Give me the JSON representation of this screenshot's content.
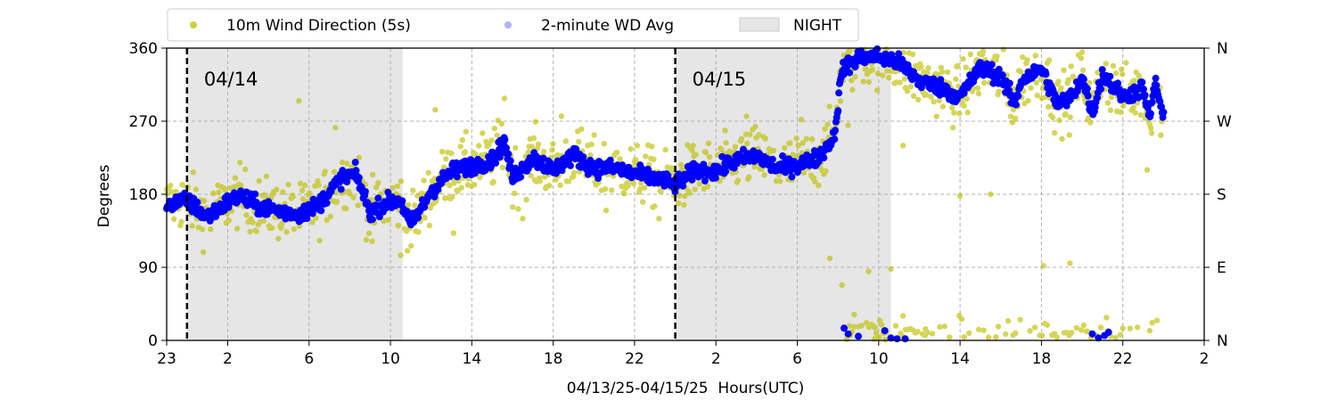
{
  "chart_data": {
    "type": "scatter",
    "xlabel": "04/13/25-04/15/25  Hours(UTC)",
    "ylabel": "Degrees",
    "ylim": [
      0,
      360
    ],
    "xlim": [
      -1,
      50
    ],
    "grid": true,
    "legend_placement": "top",
    "x_ticks": [
      -1,
      2,
      6,
      10,
      14,
      18,
      22,
      26,
      30,
      34,
      38,
      42,
      46,
      50
    ],
    "x_tick_labels": [
      "23",
      "2",
      "6",
      "10",
      "14",
      "18",
      "22",
      "2",
      "6",
      "10",
      "14",
      "18",
      "22",
      "2"
    ],
    "y_ticks": [
      0,
      90,
      180,
      270,
      360
    ],
    "y_tick_labels": [
      "0",
      "90",
      "180",
      "270",
      "360"
    ],
    "y2_tick_labels": [
      "N",
      "E",
      "S",
      "W",
      "N"
    ],
    "day_markers": [
      {
        "x": 0,
        "label": "04/14"
      },
      {
        "x": 24,
        "label": "04/15"
      }
    ],
    "night_periods": [
      [
        0,
        10.6
      ],
      [
        24,
        34.6
      ]
    ],
    "series": [
      {
        "name": "10m Wind Direction (5s)",
        "color": "#bfbf00",
        "spread": 18,
        "outliers": [
          [
            5.5,
            295
          ],
          [
            7.3,
            262
          ],
          [
            9.1,
            122
          ],
          [
            10.5,
            105
          ],
          [
            12.2,
            284
          ],
          [
            13.1,
            132
          ],
          [
            15.6,
            298
          ],
          [
            16.5,
            150
          ],
          [
            18.4,
            276
          ],
          [
            20.6,
            160
          ],
          [
            23.2,
            150
          ],
          [
            27.5,
            276
          ],
          [
            30.2,
            272
          ],
          [
            32.5,
            265
          ],
          [
            34.6,
            88
          ],
          [
            35.2,
            240
          ],
          [
            39.5,
            180
          ],
          [
            38.0,
            178
          ],
          [
            42.1,
            92
          ],
          [
            43.4,
            95
          ],
          [
            47.2,
            210
          ],
          [
            45.2,
            28
          ],
          [
            36.3,
            14
          ],
          [
            33.5,
            85
          ],
          [
            31.6,
            101
          ],
          [
            32.2,
            68
          ]
        ]
      },
      {
        "name": "2-minute WD Avg",
        "color": "#0000ff",
        "points": [
          [
            -1,
            168
          ],
          [
            0,
            172
          ],
          [
            1,
            152
          ],
          [
            2,
            170
          ],
          [
            2.6,
            178
          ],
          [
            3.5,
            165
          ],
          [
            4.5,
            160
          ],
          [
            5.5,
            155
          ],
          [
            6.5,
            168
          ],
          [
            7.6,
            200
          ],
          [
            8.3,
            205
          ],
          [
            9.0,
            158
          ],
          [
            9.8,
            170
          ],
          [
            10.5,
            172
          ],
          [
            11.0,
            142
          ],
          [
            11.5,
            162
          ],
          [
            12.0,
            184
          ],
          [
            13,
            208
          ],
          [
            14,
            215
          ],
          [
            15,
            222
          ],
          [
            15.6,
            245
          ],
          [
            16.0,
            200
          ],
          [
            17.0,
            225
          ],
          [
            18,
            210
          ],
          [
            19,
            228
          ],
          [
            20,
            212
          ],
          [
            21,
            212
          ],
          [
            22,
            205
          ],
          [
            23,
            200
          ],
          [
            24,
            192
          ],
          [
            25,
            210
          ],
          [
            26,
            208
          ],
          [
            27,
            222
          ],
          [
            28,
            228
          ],
          [
            29,
            212
          ],
          [
            30,
            216
          ],
          [
            31,
            225
          ],
          [
            31.8,
            250
          ],
          [
            32.2,
            334
          ],
          [
            33,
            348
          ],
          [
            34,
            350
          ],
          [
            35,
            342
          ],
          [
            36,
            320
          ],
          [
            37,
            312
          ],
          [
            38,
            300
          ],
          [
            39,
            336
          ],
          [
            40,
            325
          ],
          [
            40.7,
            290
          ],
          [
            41,
            320
          ],
          [
            42,
            335
          ],
          [
            42.8,
            290
          ],
          [
            43.5,
            300
          ],
          [
            44,
            325
          ],
          [
            44.5,
            280
          ],
          [
            45,
            328
          ],
          [
            46,
            300
          ],
          [
            47,
            310
          ],
          [
            47.3,
            272
          ],
          [
            47.6,
            320
          ],
          [
            48,
            270
          ]
        ],
        "wrap_points": [
          [
            32.3,
            15
          ],
          [
            32.5,
            8
          ],
          [
            33.0,
            5
          ],
          [
            34.3,
            12
          ],
          [
            34.6,
            3
          ],
          [
            34.9,
            2
          ],
          [
            35.3,
            2
          ],
          [
            44.5,
            8
          ],
          [
            45.1,
            6
          ],
          [
            45.3,
            10
          ],
          [
            44.8,
            3
          ]
        ]
      }
    ],
    "night_label": "NIGHT"
  }
}
